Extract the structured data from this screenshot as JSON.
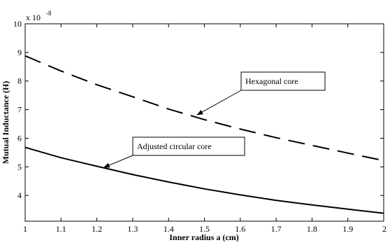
{
  "chart_data": {
    "type": "line",
    "title": "",
    "xlabel": "Inner radius a (cm)",
    "ylabel": "Mutual Inductance (H)",
    "y_scale_label": "x 10",
    "y_scale_exponent": "-8",
    "xlim": [
      1,
      2
    ],
    "ylim": [
      3.1,
      10
    ],
    "xticks": [
      "1",
      "1.1",
      "1.2",
      "1.3",
      "1.4",
      "1.5",
      "1.6",
      "1.7",
      "1.8",
      "1.9",
      "2"
    ],
    "yticks": [
      "4",
      "5",
      "6",
      "7",
      "8",
      "9",
      "10"
    ],
    "grid": false,
    "series": [
      {
        "name": "Hexagonal core",
        "line_style": "dashed",
        "x": [
          1.0,
          1.1,
          1.2,
          1.3,
          1.4,
          1.5,
          1.6,
          1.7,
          1.8,
          1.9,
          2.0
        ],
        "y": [
          8.88,
          8.35,
          7.87,
          7.45,
          7.02,
          6.65,
          6.32,
          6.02,
          5.75,
          5.48,
          5.22
        ]
      },
      {
        "name": "Adjusted circular core",
        "line_style": "solid",
        "x": [
          1.0,
          1.1,
          1.2,
          1.3,
          1.4,
          1.5,
          1.6,
          1.7,
          1.8,
          1.9,
          2.0
        ],
        "y": [
          5.68,
          5.32,
          5.02,
          4.73,
          4.47,
          4.23,
          4.02,
          3.83,
          3.67,
          3.52,
          3.38
        ]
      }
    ],
    "annotations": [
      {
        "text": "Hexagonal core",
        "arrow_to": [
          1.48,
          6.82
        ]
      },
      {
        "text": "Adjusted circular core",
        "arrow_to": [
          1.22,
          4.98
        ]
      }
    ],
    "colors": {
      "line": "#000000",
      "frame": "#000000"
    }
  }
}
